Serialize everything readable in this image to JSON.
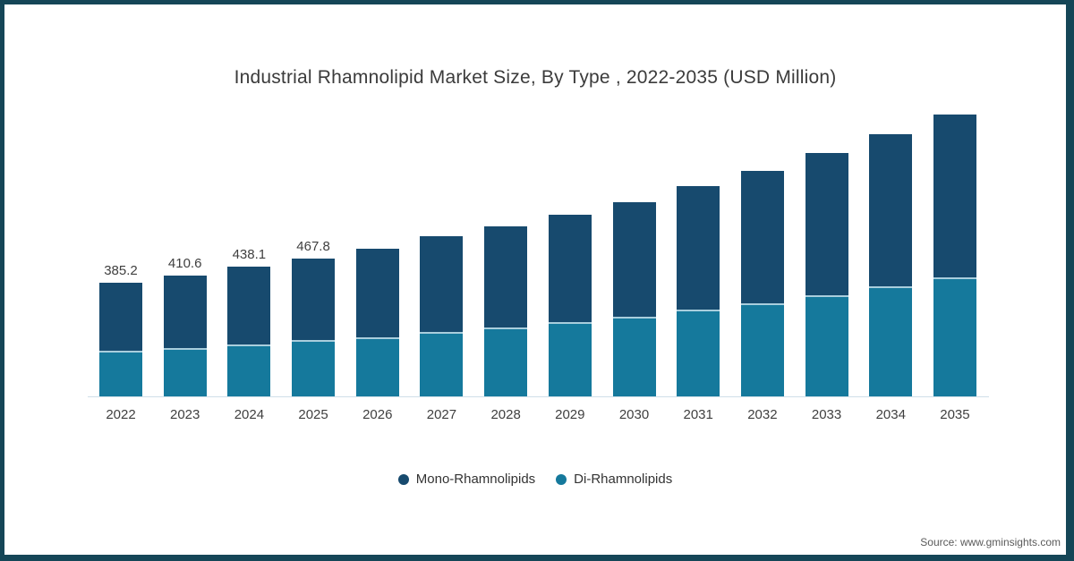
{
  "title": "Industrial Rhamnolipid Market Size, By Type , 2022-2035 (USD Million)",
  "source": "Source: www.gminsights.com",
  "legend": [
    {
      "label": "Mono-Rhamnolipids",
      "color": "#174a6e"
    },
    {
      "label": "Di-Rhamnolipids",
      "color": "#15799c"
    }
  ],
  "colors": {
    "background": "#ffffff",
    "frame_border": "#154657",
    "title_text": "#3b3b3b",
    "label_text": "#3f3f3f",
    "legend_text": "#333333",
    "source_text": "#5a5a5a",
    "axis_line": "#cfdfe8",
    "separator": "#a9cedd",
    "mono_rhamnolipids": "#174a6e",
    "di_rhamnolipids": "#15799c"
  },
  "chart_data": {
    "type": "bar",
    "stacked": true,
    "title": "Industrial Rhamnolipid Market Size, By Type , 2022-2035 (USD Million)",
    "unit": "USD Million",
    "xlabel": "",
    "ylabel": "",
    "ylim": [
      0,
      1000
    ],
    "grid": false,
    "legend_position": "bottom",
    "categories": [
      "2022",
      "2023",
      "2024",
      "2025",
      "2026",
      "2027",
      "2028",
      "2029",
      "2030",
      "2031",
      "2032",
      "2033",
      "2034",
      "2035"
    ],
    "stack_bottom_to_top": [
      "Di-Rhamnolipids",
      "Mono-Rhamnolipids"
    ],
    "series": [
      {
        "name": "Mono-Rhamnolipids",
        "color": "#174a6e",
        "values": [
          231.2,
          246.6,
          262.1,
          277.8,
          300,
          322,
          340,
          363,
          389,
          420,
          449,
          481,
          513,
          554
        ]
      },
      {
        "name": "Di-Rhamnolipids",
        "color": "#15799c",
        "values": [
          154,
          164,
          176,
          190,
          200,
          219,
          235,
          252,
          270,
          293,
          315,
          342,
          374,
          402
        ]
      }
    ],
    "totals": [
      385.2,
      410.6,
      438.1,
      467.8,
      500,
      541,
      575,
      615,
      659,
      713,
      764,
      823,
      887,
      956
    ],
    "total_labels": [
      "385.2",
      "410.6",
      "438.1",
      "467.8",
      "",
      "",
      "",
      "",
      "",
      "",
      "",
      "",
      "",
      ""
    ]
  }
}
